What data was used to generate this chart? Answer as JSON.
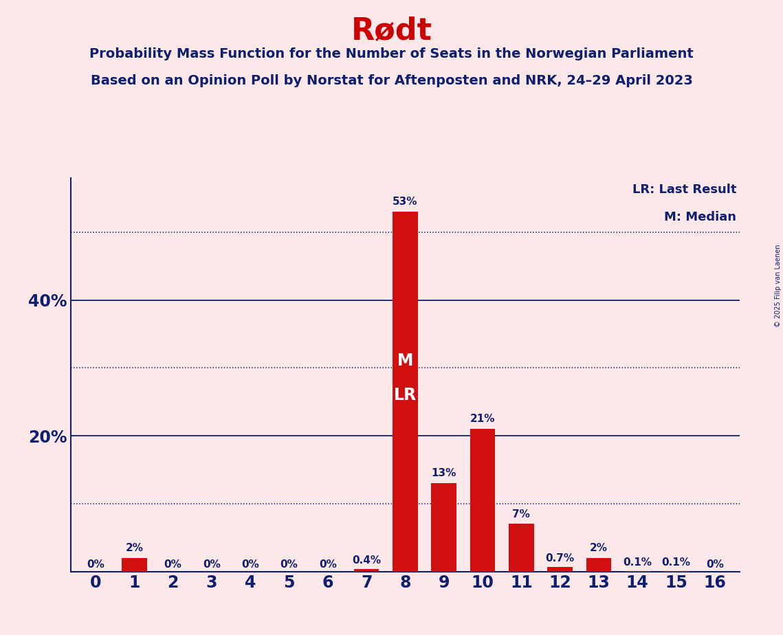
{
  "title": "Rødt",
  "subtitle1": "Probability Mass Function for the Number of Seats in the Norwegian Parliament",
  "subtitle2": "Based on an Opinion Poll by Norstat for Aftenposten and NRK, 24–29 April 2023",
  "copyright": "© 2025 Filip van Laenen",
  "categories": [
    0,
    1,
    2,
    3,
    4,
    5,
    6,
    7,
    8,
    9,
    10,
    11,
    12,
    13,
    14,
    15,
    16
  ],
  "values": [
    0.0,
    2.0,
    0.0,
    0.0,
    0.0,
    0.0,
    0.0,
    0.4,
    53.0,
    13.0,
    21.0,
    7.0,
    0.7,
    2.0,
    0.1,
    0.1,
    0.0
  ],
  "labels": [
    "0%",
    "2%",
    "0%",
    "0%",
    "0%",
    "0%",
    "0%",
    "0.4%",
    "53%",
    "13%",
    "21%",
    "7%",
    "0.7%",
    "2%",
    "0.1%",
    "0.1%",
    "0%"
  ],
  "bar_color": "#d01010",
  "background_color": "#fce8e8",
  "title_color": "#cc0000",
  "text_color": "#0d1f6e",
  "grid_color": "#0d1f6e",
  "median_seat": 8,
  "last_result_seat": 8,
  "median_label": "M",
  "lr_label": "LR",
  "legend_lr": "LR: Last Result",
  "legend_m": "M: Median",
  "ylim": [
    0,
    58
  ],
  "dotted_lines": [
    10,
    30,
    50
  ],
  "solid_lines": [
    20,
    40
  ],
  "bar_width": 0.65,
  "label_fontsize": 11,
  "tick_fontsize": 17,
  "title_fontsize": 32,
  "subtitle_fontsize": 14,
  "legend_fontsize": 13,
  "ml_fontsize": 17
}
